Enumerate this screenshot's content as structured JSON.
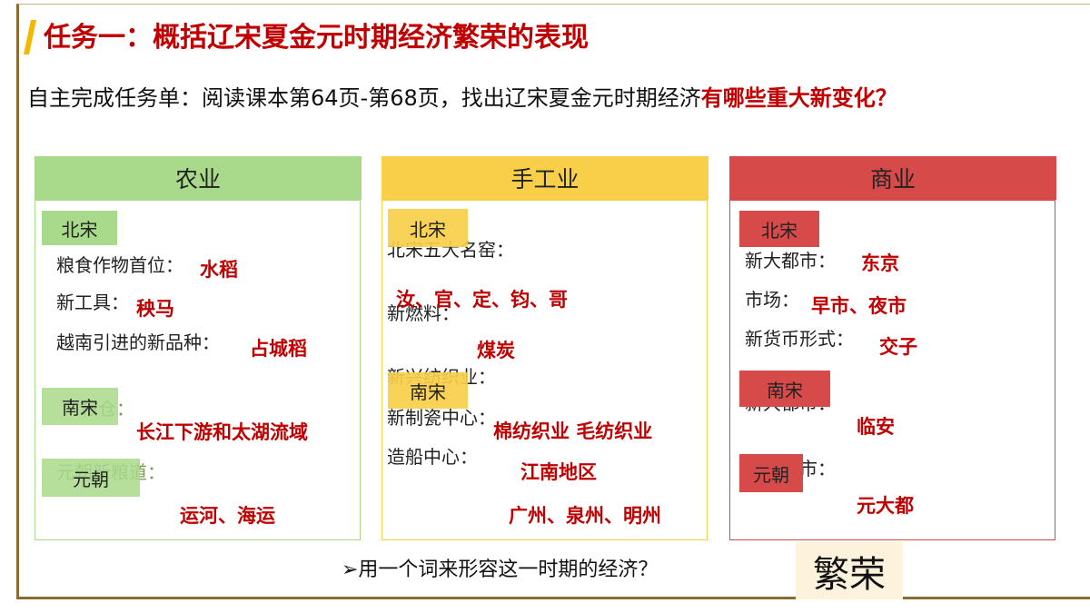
{
  "title": "任务一：概括辽宋夏金元时期经济繁荣的表现",
  "subtitle": {
    "text": "自主完成任务单：阅读课本第64页-第68页，找出辽宋夏金元时期经济",
    "highlight": "有哪些重大新变化？"
  },
  "columns": [
    {
      "header": "农业",
      "tags": [
        "北宋",
        "南宋",
        "元朝"
      ],
      "labels": [
        "粮食作物首位：",
        "新工具：",
        "越南引进的新品种：",
        "粮仓：",
        "元朝新粮道："
      ],
      "answers": [
        "水稻",
        "秧马",
        "占城稻",
        "长江下游和太湖流域",
        "运河、海运"
      ]
    },
    {
      "header": "手工业",
      "tags": [
        "北宋",
        "南宋"
      ],
      "labels": [
        "北宋五大名窑：",
        "新燃料：",
        "新兴纺织业：",
        "新制瓷中心：",
        "造船中心："
      ],
      "answers": [
        "汝、官、定、钧、哥",
        "煤炭",
        "棉纺织业  毛纺织业",
        "江南地区",
        "广州、泉州、明州"
      ]
    },
    {
      "header": "商业",
      "tags": [
        "北宋",
        "南宋",
        "元朝"
      ],
      "labels": [
        "新大都市：",
        "市场：",
        "新货币形式：",
        "新大都市：",
        "新大都市："
      ],
      "answers": [
        "东京",
        "早市、夜市",
        "交子",
        "临安",
        "元大都"
      ]
    }
  ],
  "question": "➢用一个词来形容这一时期的经济？",
  "answer": "繁荣"
}
